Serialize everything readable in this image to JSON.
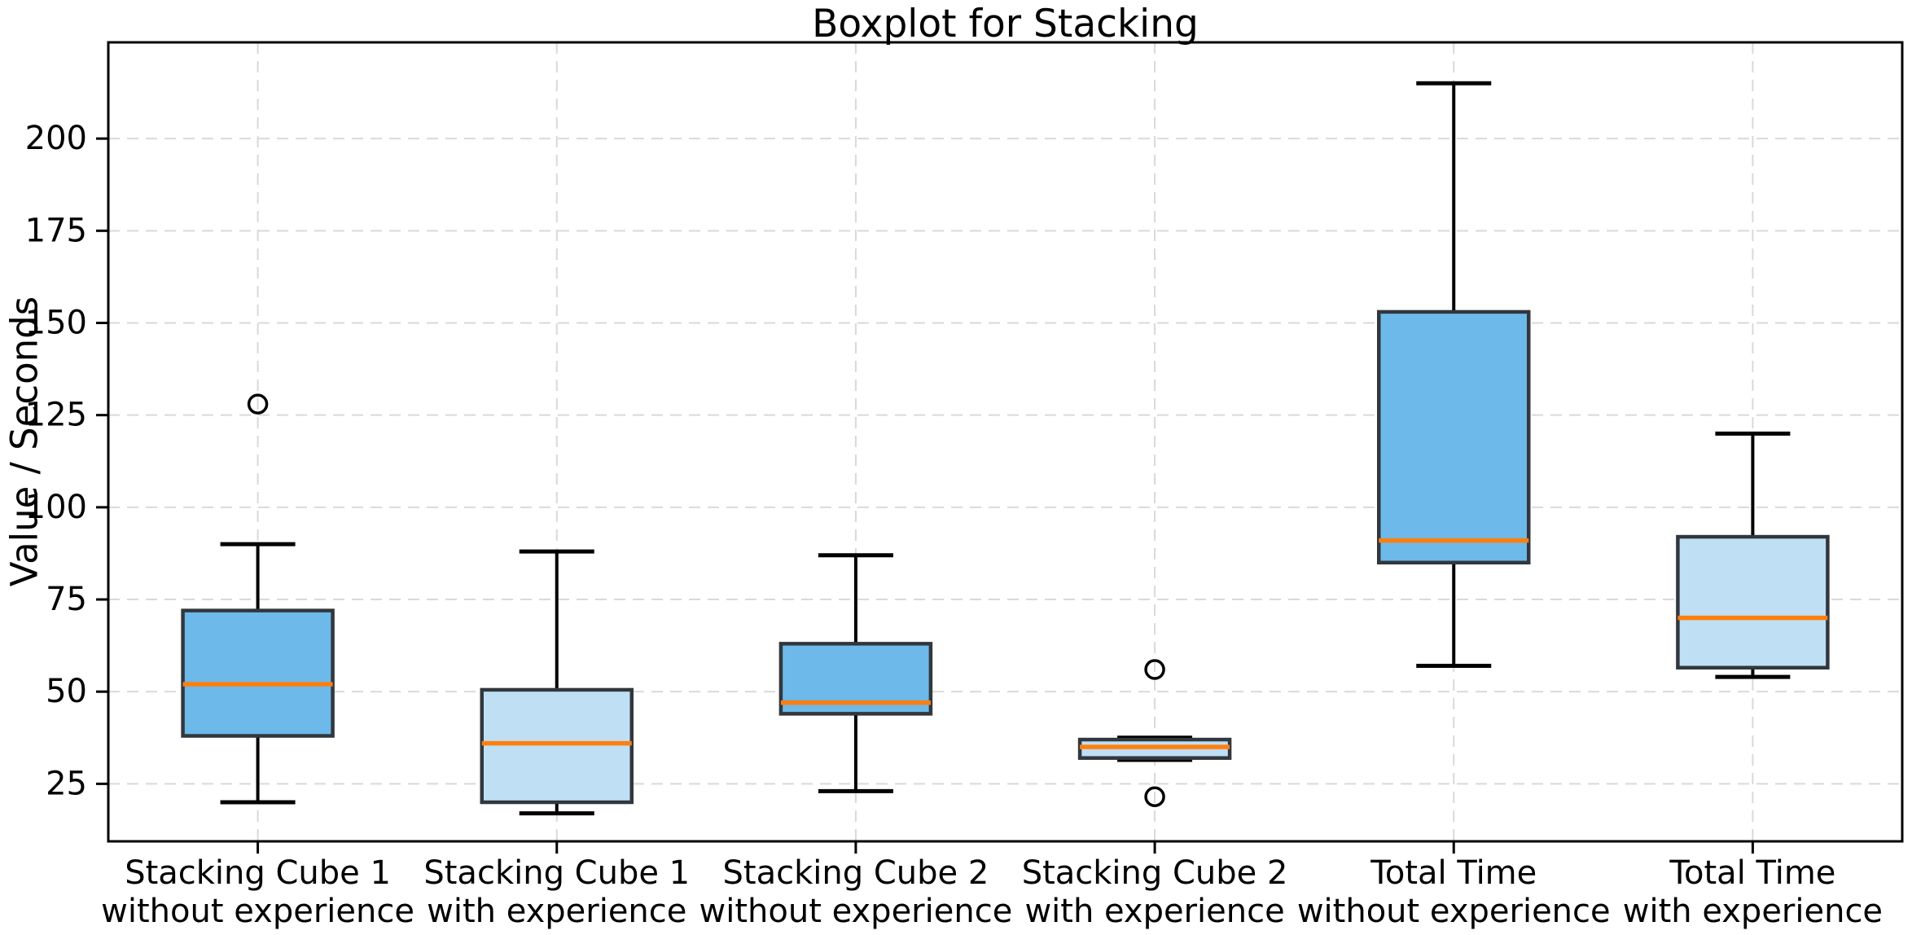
{
  "chart_data": {
    "type": "boxplot",
    "title": "Boxplot for Stacking",
    "ylabel": "Value / Seconds",
    "xlabel": "",
    "ylim": [
      9.4,
      226.1
    ],
    "yticks": [
      25,
      50,
      75,
      100,
      125,
      150,
      175,
      200
    ],
    "grid": true,
    "legend": "none",
    "categories": [
      [
        "Stacking Cube 1",
        "without experience"
      ],
      [
        "Stacking Cube 1",
        "with experience"
      ],
      [
        "Stacking Cube 2",
        "without experience"
      ],
      [
        "Stacking Cube 2",
        "with experience"
      ],
      [
        "Total Time",
        "without experience"
      ],
      [
        "Total Time",
        "with experience"
      ]
    ],
    "boxes": [
      {
        "name": "Stacking Cube 1 without experience",
        "whisker_low": 20,
        "q1": 38,
        "median": 52,
        "q3": 72,
        "whisker_high": 90,
        "outliers": [
          128
        ],
        "fill": "#6db9e9"
      },
      {
        "name": "Stacking Cube 1 with experience",
        "whisker_low": 17,
        "q1": 20,
        "median": 36,
        "q3": 50.5,
        "whisker_high": 88,
        "outliers": [],
        "fill": "#bfdff5"
      },
      {
        "name": "Stacking Cube 2 without experience",
        "whisker_low": 23,
        "q1": 44,
        "median": 47,
        "q3": 63,
        "whisker_high": 87,
        "outliers": [],
        "fill": "#6db9e9"
      },
      {
        "name": "Stacking Cube 2 with experience",
        "whisker_low": 31.5,
        "q1": 32,
        "median": 35,
        "q3": 37,
        "whisker_high": 37.5,
        "outliers": [
          56,
          21.5
        ],
        "fill": "#bfdff5"
      },
      {
        "name": "Total Time without experience",
        "whisker_low": 57,
        "q1": 85,
        "median": 91,
        "q3": 153,
        "whisker_high": 215,
        "outliers": [],
        "fill": "#6db9e9"
      },
      {
        "name": "Total Time with experience",
        "whisker_low": 54,
        "q1": 56.5,
        "median": 70,
        "q3": 92,
        "whisker_high": 120,
        "outliers": [],
        "fill": "#bfdff5"
      }
    ],
    "colors": {
      "box_fill_without_experience": "#6db9e9",
      "box_fill_with_experience": "#bfdff5",
      "median_line": "#ff7f0e",
      "box_edge": "#31373d",
      "whisker": "#000000",
      "gridline": "#d9d9d9",
      "frame": "#000000",
      "background": "#ffffff"
    }
  }
}
